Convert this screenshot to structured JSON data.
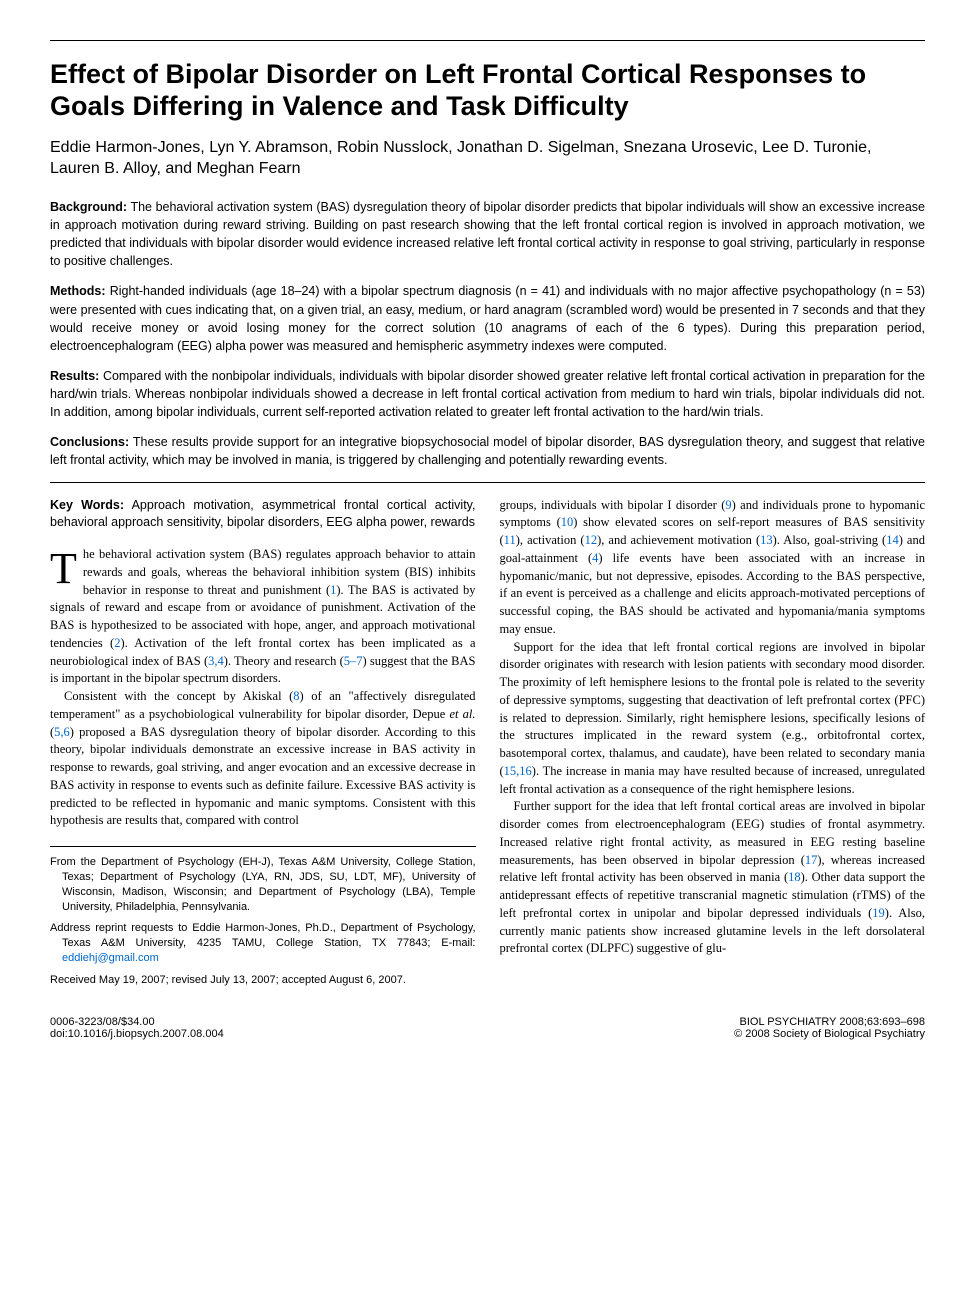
{
  "title": "Effect of Bipolar Disorder on Left Frontal Cortical Responses to Goals Differing in Valence and Task Difficulty",
  "authors": "Eddie Harmon-Jones, Lyn Y. Abramson, Robin Nusslock, Jonathan D. Sigelman, Snezana Urosevic, Lee D. Turonie, Lauren B. Alloy, and Meghan Fearn",
  "abstract": {
    "background_label": "Background:",
    "background": "The behavioral activation system (BAS) dysregulation theory of bipolar disorder predicts that bipolar individuals will show an excessive increase in approach motivation during reward striving. Building on past research showing that the left frontal cortical region is involved in approach motivation, we predicted that individuals with bipolar disorder would evidence increased relative left frontal cortical activity in response to goal striving, particularly in response to positive challenges.",
    "methods_label": "Methods:",
    "methods": "Right-handed individuals (age 18–24) with a bipolar spectrum diagnosis (n = 41) and individuals with no major affective psychopathology (n = 53) were presented with cues indicating that, on a given trial, an easy, medium, or hard anagram (scrambled word) would be presented in 7 seconds and that they would receive money or avoid losing money for the correct solution (10 anagrams of each of the 6 types). During this preparation period, electroencephalogram (EEG) alpha power was measured and hemispheric asymmetry indexes were computed.",
    "results_label": "Results:",
    "results": "Compared with the nonbipolar individuals, individuals with bipolar disorder showed greater relative left frontal cortical activation in preparation for the hard/win trials. Whereas nonbipolar individuals showed a decrease in left frontal cortical activation from medium to hard win trials, bipolar individuals did not. In addition, among bipolar individuals, current self-reported activation related to greater left frontal activation to the hard/win trials.",
    "conclusions_label": "Conclusions:",
    "conclusions": "These results provide support for an integrative biopsychosocial model of bipolar disorder, BAS dysregulation theory, and suggest that relative left frontal activity, which may be involved in mania, is triggered by challenging and potentially rewarding events."
  },
  "keywords_label": "Key Words:",
  "keywords": "Approach motivation, asymmetrical frontal cortical activity, behavioral approach sensitivity, bipolar disorders, EEG alpha power, rewards",
  "body": {
    "p1a": "T",
    "p1b": "he behavioral activation system (BAS) regulates approach behavior to attain rewards and goals, whereas the behavioral inhibition system (BIS) inhibits behavior in response to threat and punishment (",
    "p1c": "). The BAS is activated by signals of reward and escape from or avoidance of punishment. Activation of the BAS is hypothesized to be associated with hope, anger, and approach motivational tendencies (",
    "p1d": "). Activation of the left frontal cortex has been implicated as a neurobiological index of BAS (",
    "p1e": "). Theory and research (",
    "p1f": ") suggest that the BAS is important in the bipolar spectrum disorders.",
    "p2a": "Consistent with the concept by Akiskal (",
    "p2b": ") of an \"affectively disregulated temperament\" as a psychobiological vulnerability for bipolar disorder, Depue ",
    "p2c": " (",
    "p2d": ") proposed a BAS dysregulation theory of bipolar disorder. According to this theory, bipolar individuals demonstrate an excessive increase in BAS activity in response to rewards, goal striving, and anger evocation and an excessive decrease in BAS activity in response to events such as definite failure. Excessive BAS activity is predicted to be reflected in hypomanic and manic symptoms. Consistent with this hypothesis are results that, compared with control",
    "p3a": "groups, individuals with bipolar I disorder (",
    "p3b": ") and individuals prone to hypomanic symptoms (",
    "p3c": ") show elevated scores on self-report measures of BAS sensitivity (",
    "p3d": "), activation (",
    "p3e": "), and achievement motivation (",
    "p3f": "). Also, goal-striving (",
    "p3g": ") and goal-attainment (",
    "p3h": ") life events have been associated with an increase in hypomanic/manic, but not depressive, episodes. According to the BAS perspective, if an event is perceived as a challenge and elicits approach-motivated perceptions of successful coping, the BAS should be activated and hypomania/mania symptoms may ensue.",
    "p4a": "Support for the idea that left frontal cortical regions are involved in bipolar disorder originates with research with lesion patients with secondary mood disorder. The proximity of left hemisphere lesions to the frontal pole is related to the severity of depressive symptoms, suggesting that deactivation of left prefrontal cortex (PFC) is related to depression. Similarly, right hemisphere lesions, specifically lesions of the structures implicated in the reward system (e.g., orbitofrontal cortex, basotemporal cortex, thalamus, and caudate), have been related to secondary mania (",
    "p4b": "). The increase in mania may have resulted because of increased, unregulated left frontal activation as a consequence of the right hemisphere lesions.",
    "p5a": "Further support for the idea that left frontal cortical areas are involved in bipolar disorder comes from electroencephalogram (EEG) studies of frontal asymmetry. Increased relative right frontal activity, as measured in EEG resting baseline measurements, has been observed in bipolar depression (",
    "p5b": "), whereas increased relative left frontal activity has been observed in mania (",
    "p5c": "). Other data support the antidepressant effects of repetitive transcranial magnetic stimulation (rTMS) of the left prefrontal cortex in unipolar and bipolar depressed individuals (",
    "p5d": "). Also, currently manic patients show increased glutamine levels in the left dorsolateral prefrontal cortex (DLPFC) suggestive of glu-"
  },
  "refs": {
    "r1": "1",
    "r2": "2",
    "r34": "3,4",
    "r57": "5–7",
    "r8": "8",
    "r56": "5,6",
    "r9": "9",
    "r10": "10",
    "r11": "11",
    "r12": "12",
    "r13": "13",
    "r14": "14",
    "r4": "4",
    "r1516": "15,16",
    "r17": "17",
    "r18": "18",
    "r19": "19"
  },
  "etal": "et al.",
  "affiliations": {
    "from": "From the Department of Psychology (EH-J), Texas A&M University, College Station, Texas; Department of Psychology (LYA, RN, JDS, SU, LDT, MF), University of Wisconsin, Madison, Wisconsin; and Department of Psychology (LBA), Temple University, Philadelphia, Pennsylvania.",
    "reprint": "Address reprint requests to Eddie Harmon-Jones, Ph.D., Department of Psychology, Texas A&M University, 4235 TAMU, College Station, TX 77843; E-mail: ",
    "email": "eddiehj@gmail.com",
    "received": "Received May 19, 2007; revised July 13, 2007; accepted August 6, 2007."
  },
  "footer": {
    "issn": "0006-3223/08/$34.00",
    "doi": "doi:10.1016/j.biopsych.2007.08.004",
    "journal": "BIOL PSYCHIATRY 2008;63:693–698",
    "copyright": "© 2008 Society of Biological Psychiatry"
  }
}
